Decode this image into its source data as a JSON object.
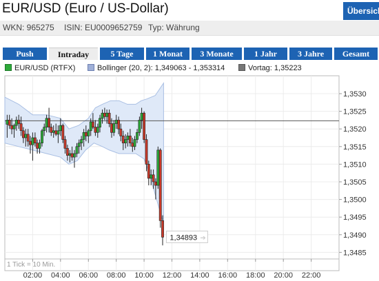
{
  "header": {
    "title": "EUR/USD (Euro / US-Dollar)",
    "overview_label": "Übersicht",
    "wkn": "WKN: 965275",
    "isin": "ISIN: EU0009652759",
    "typ": "Typ: Währung"
  },
  "tabs": [
    {
      "label": "Push",
      "active": false
    },
    {
      "label": "Intraday",
      "active": true
    },
    {
      "label": "5 Tage",
      "active": false
    },
    {
      "label": "1 Monat",
      "active": false
    },
    {
      "label": "3 Monate",
      "active": false
    },
    {
      "label": "1 Jahr",
      "active": false
    },
    {
      "label": "3 Jahre",
      "active": false
    },
    {
      "label": "Gesamt",
      "active": false
    }
  ],
  "legend": {
    "series": {
      "label": "EUR/USD (RTFX)",
      "color": "#2eaa3a"
    },
    "bollinger": {
      "label": "Bollinger (20, 2): 1,349063 - 1,353314",
      "color": "#9fb0d8"
    },
    "vortag": {
      "label": "Vortag: 1,35223",
      "color": "#777777"
    }
  },
  "colors": {
    "accent": "#1d63b3",
    "up": "#2eaa3a",
    "down": "#c83a2a",
    "band": "#dfe9f8"
  },
  "chart_data": {
    "type": "candlestick",
    "ylim": [
      1.3484,
      1.3535
    ],
    "y_ticks": [
      "1,3530",
      "1,3525",
      "1,3520",
      "1,3515",
      "1,3510",
      "1,3505",
      "1,3500",
      "1,3495",
      "1,3490",
      "1,3485"
    ],
    "y_tick_values": [
      1.353,
      1.3525,
      1.352,
      1.3515,
      1.351,
      1.3505,
      1.35,
      1.3495,
      1.349,
      1.3485
    ],
    "x_ticks": [
      "02:00",
      "04:00",
      "06:00",
      "08:00",
      "10:00",
      "12:00",
      "14:00",
      "16:00",
      "18:00",
      "20:00",
      "22:00"
    ],
    "xlim_hours": [
      0,
      24
    ],
    "previous_close": 1.35223,
    "last_price_label": "1,34893",
    "last_price": 1.34893,
    "tick_note": "1 Tick = 10 Min.",
    "grid": true,
    "candles": [
      {
        "t": 0.17,
        "o": 1.35213,
        "h": 1.3524,
        "l": 1.35175,
        "c": 1.35225
      },
      {
        "t": 0.33,
        "o": 1.35225,
        "h": 1.3524,
        "l": 1.352,
        "c": 1.3521
      },
      {
        "t": 0.5,
        "o": 1.3521,
        "h": 1.3523,
        "l": 1.35185,
        "c": 1.352
      },
      {
        "t": 0.67,
        "o": 1.352,
        "h": 1.35215,
        "l": 1.35175,
        "c": 1.3521
      },
      {
        "t": 0.83,
        "o": 1.3521,
        "h": 1.35235,
        "l": 1.35195,
        "c": 1.35225
      },
      {
        "t": 1.0,
        "o": 1.35225,
        "h": 1.3524,
        "l": 1.352,
        "c": 1.35215
      },
      {
        "t": 1.17,
        "o": 1.35215,
        "h": 1.35235,
        "l": 1.3518,
        "c": 1.35195
      },
      {
        "t": 1.33,
        "o": 1.35195,
        "h": 1.35205,
        "l": 1.3516,
        "c": 1.35175
      },
      {
        "t": 1.5,
        "o": 1.35175,
        "h": 1.352,
        "l": 1.3515,
        "c": 1.35185
      },
      {
        "t": 1.67,
        "o": 1.35185,
        "h": 1.352,
        "l": 1.3515,
        "c": 1.35165
      },
      {
        "t": 1.83,
        "o": 1.35165,
        "h": 1.3518,
        "l": 1.3513,
        "c": 1.35155
      },
      {
        "t": 2.0,
        "o": 1.35155,
        "h": 1.3519,
        "l": 1.3511,
        "c": 1.35175
      },
      {
        "t": 2.17,
        "o": 1.35175,
        "h": 1.3519,
        "l": 1.3515,
        "c": 1.3516
      },
      {
        "t": 2.33,
        "o": 1.3516,
        "h": 1.3517,
        "l": 1.3513,
        "c": 1.35145
      },
      {
        "t": 2.5,
        "o": 1.35145,
        "h": 1.3517,
        "l": 1.3513,
        "c": 1.3516
      },
      {
        "t": 2.67,
        "o": 1.3516,
        "h": 1.352,
        "l": 1.3515,
        "c": 1.35195
      },
      {
        "t": 2.83,
        "o": 1.35195,
        "h": 1.35215,
        "l": 1.3518,
        "c": 1.35205
      },
      {
        "t": 3.0,
        "o": 1.35205,
        "h": 1.3524,
        "l": 1.3519,
        "c": 1.3523
      },
      {
        "t": 3.17,
        "o": 1.3523,
        "h": 1.3526,
        "l": 1.3519,
        "c": 1.35205
      },
      {
        "t": 3.33,
        "o": 1.35205,
        "h": 1.35215,
        "l": 1.3518,
        "c": 1.3519
      },
      {
        "t": 3.5,
        "o": 1.3519,
        "h": 1.3521,
        "l": 1.35175,
        "c": 1.35195
      },
      {
        "t": 3.67,
        "o": 1.35195,
        "h": 1.35215,
        "l": 1.3518,
        "c": 1.35185
      },
      {
        "t": 3.83,
        "o": 1.35185,
        "h": 1.3521,
        "l": 1.3516,
        "c": 1.35195
      },
      {
        "t": 4.0,
        "o": 1.35195,
        "h": 1.3523,
        "l": 1.3518,
        "c": 1.3521
      },
      {
        "t": 4.17,
        "o": 1.3521,
        "h": 1.35215,
        "l": 1.3516,
        "c": 1.3517
      },
      {
        "t": 4.33,
        "o": 1.3517,
        "h": 1.3518,
        "l": 1.3513,
        "c": 1.35145
      },
      {
        "t": 4.5,
        "o": 1.35145,
        "h": 1.35155,
        "l": 1.3511,
        "c": 1.35125
      },
      {
        "t": 4.67,
        "o": 1.35125,
        "h": 1.3514,
        "l": 1.35105,
        "c": 1.3513
      },
      {
        "t": 4.83,
        "o": 1.3513,
        "h": 1.3515,
        "l": 1.3511,
        "c": 1.3512
      },
      {
        "t": 5.0,
        "o": 1.3512,
        "h": 1.3514,
        "l": 1.3509,
        "c": 1.3513
      },
      {
        "t": 5.17,
        "o": 1.3513,
        "h": 1.3516,
        "l": 1.3512,
        "c": 1.3515
      },
      {
        "t": 5.33,
        "o": 1.3515,
        "h": 1.3517,
        "l": 1.3513,
        "c": 1.3516
      },
      {
        "t": 5.5,
        "o": 1.3516,
        "h": 1.3518,
        "l": 1.3514,
        "c": 1.3517
      },
      {
        "t": 5.67,
        "o": 1.3517,
        "h": 1.352,
        "l": 1.3515,
        "c": 1.3519
      },
      {
        "t": 5.83,
        "o": 1.3519,
        "h": 1.3521,
        "l": 1.35165,
        "c": 1.3518
      },
      {
        "t": 6.0,
        "o": 1.3518,
        "h": 1.352,
        "l": 1.3516,
        "c": 1.35195
      },
      {
        "t": 6.17,
        "o": 1.35195,
        "h": 1.3523,
        "l": 1.3518,
        "c": 1.3522
      },
      {
        "t": 6.33,
        "o": 1.3522,
        "h": 1.35245,
        "l": 1.352,
        "c": 1.35205
      },
      {
        "t": 6.5,
        "o": 1.35205,
        "h": 1.35225,
        "l": 1.3518,
        "c": 1.3519
      },
      {
        "t": 6.67,
        "o": 1.3519,
        "h": 1.35215,
        "l": 1.35175,
        "c": 1.35205
      },
      {
        "t": 6.83,
        "o": 1.35205,
        "h": 1.3524,
        "l": 1.3519,
        "c": 1.3523
      },
      {
        "t": 7.0,
        "o": 1.3523,
        "h": 1.35255,
        "l": 1.35215,
        "c": 1.35245
      },
      {
        "t": 7.17,
        "o": 1.35245,
        "h": 1.3526,
        "l": 1.35225,
        "c": 1.35235
      },
      {
        "t": 7.33,
        "o": 1.35235,
        "h": 1.35255,
        "l": 1.35215,
        "c": 1.35245
      },
      {
        "t": 7.5,
        "o": 1.35245,
        "h": 1.35255,
        "l": 1.35205,
        "c": 1.35215
      },
      {
        "t": 7.67,
        "o": 1.35215,
        "h": 1.3523,
        "l": 1.35175,
        "c": 1.3519
      },
      {
        "t": 7.83,
        "o": 1.3519,
        "h": 1.35225,
        "l": 1.3518,
        "c": 1.35215
      },
      {
        "t": 8.0,
        "o": 1.35215,
        "h": 1.3524,
        "l": 1.352,
        "c": 1.35225
      },
      {
        "t": 8.17,
        "o": 1.35225,
        "h": 1.35235,
        "l": 1.35185,
        "c": 1.352
      },
      {
        "t": 8.33,
        "o": 1.352,
        "h": 1.35215,
        "l": 1.35165,
        "c": 1.3518
      },
      {
        "t": 8.5,
        "o": 1.3518,
        "h": 1.35195,
        "l": 1.3514,
        "c": 1.3516
      },
      {
        "t": 8.67,
        "o": 1.3516,
        "h": 1.35185,
        "l": 1.35145,
        "c": 1.3517
      },
      {
        "t": 8.83,
        "o": 1.3517,
        "h": 1.3519,
        "l": 1.3515,
        "c": 1.3518
      },
      {
        "t": 9.0,
        "o": 1.3518,
        "h": 1.352,
        "l": 1.3515,
        "c": 1.3516
      },
      {
        "t": 9.17,
        "o": 1.3516,
        "h": 1.35175,
        "l": 1.35135,
        "c": 1.3515
      },
      {
        "t": 9.33,
        "o": 1.3515,
        "h": 1.3518,
        "l": 1.3514,
        "c": 1.3517
      },
      {
        "t": 9.5,
        "o": 1.3517,
        "h": 1.352,
        "l": 1.3516,
        "c": 1.3519
      },
      {
        "t": 9.67,
        "o": 1.3519,
        "h": 1.35235,
        "l": 1.3518,
        "c": 1.35225
      },
      {
        "t": 9.83,
        "o": 1.35225,
        "h": 1.3526,
        "l": 1.352,
        "c": 1.35245
      },
      {
        "t": 10.0,
        "o": 1.35245,
        "h": 1.3525,
        "l": 1.3516,
        "c": 1.3517
      },
      {
        "t": 10.17,
        "o": 1.3517,
        "h": 1.35185,
        "l": 1.3508,
        "c": 1.351
      },
      {
        "t": 10.33,
        "o": 1.351,
        "h": 1.3511,
        "l": 1.3504,
        "c": 1.3506
      },
      {
        "t": 10.5,
        "o": 1.3506,
        "h": 1.35085,
        "l": 1.3504,
        "c": 1.3507
      },
      {
        "t": 10.67,
        "o": 1.3507,
        "h": 1.35085,
        "l": 1.3503,
        "c": 1.3505
      },
      {
        "t": 10.83,
        "o": 1.3505,
        "h": 1.3506,
        "l": 1.35,
        "c": 1.3504
      },
      {
        "t": 11.0,
        "o": 1.3504,
        "h": 1.3515,
        "l": 1.3503,
        "c": 1.3514
      },
      {
        "t": 11.17,
        "o": 1.3514,
        "h": 1.35145,
        "l": 1.3492,
        "c": 1.3494
      },
      {
        "t": 11.33,
        "o": 1.3494,
        "h": 1.34955,
        "l": 1.3487,
        "c": 1.34893
      }
    ],
    "band_upper": [
      [
        0.0,
        1.3529
      ],
      [
        1.0,
        1.3527
      ],
      [
        2.0,
        1.3524
      ],
      [
        3.0,
        1.3524
      ],
      [
        4.0,
        1.3523
      ],
      [
        4.6,
        1.352
      ],
      [
        5.3,
        1.3521
      ],
      [
        6.0,
        1.3523
      ],
      [
        6.5,
        1.3526
      ],
      [
        7.0,
        1.3527
      ],
      [
        7.6,
        1.3528
      ],
      [
        8.2,
        1.3528
      ],
      [
        8.8,
        1.3527
      ],
      [
        9.4,
        1.3527
      ],
      [
        9.8,
        1.3528
      ],
      [
        10.2,
        1.35285
      ],
      [
        10.8,
        1.35295
      ],
      [
        11.4,
        1.3533
      ]
    ],
    "band_lower": [
      [
        11.4,
        1.3493
      ],
      [
        10.9,
        1.35
      ],
      [
        10.4,
        1.3507
      ],
      [
        10.0,
        1.35115
      ],
      [
        9.4,
        1.3513
      ],
      [
        8.8,
        1.3513
      ],
      [
        8.2,
        1.3513
      ],
      [
        7.5,
        1.3514
      ],
      [
        7.0,
        1.3515
      ],
      [
        6.4,
        1.3516
      ],
      [
        5.8,
        1.3514
      ],
      [
        5.2,
        1.3511
      ],
      [
        4.6,
        1.351
      ],
      [
        4.0,
        1.3512
      ],
      [
        3.0,
        1.3513
      ],
      [
        2.0,
        1.3514
      ],
      [
        1.0,
        1.3515
      ],
      [
        0.0,
        1.3516
      ]
    ]
  }
}
